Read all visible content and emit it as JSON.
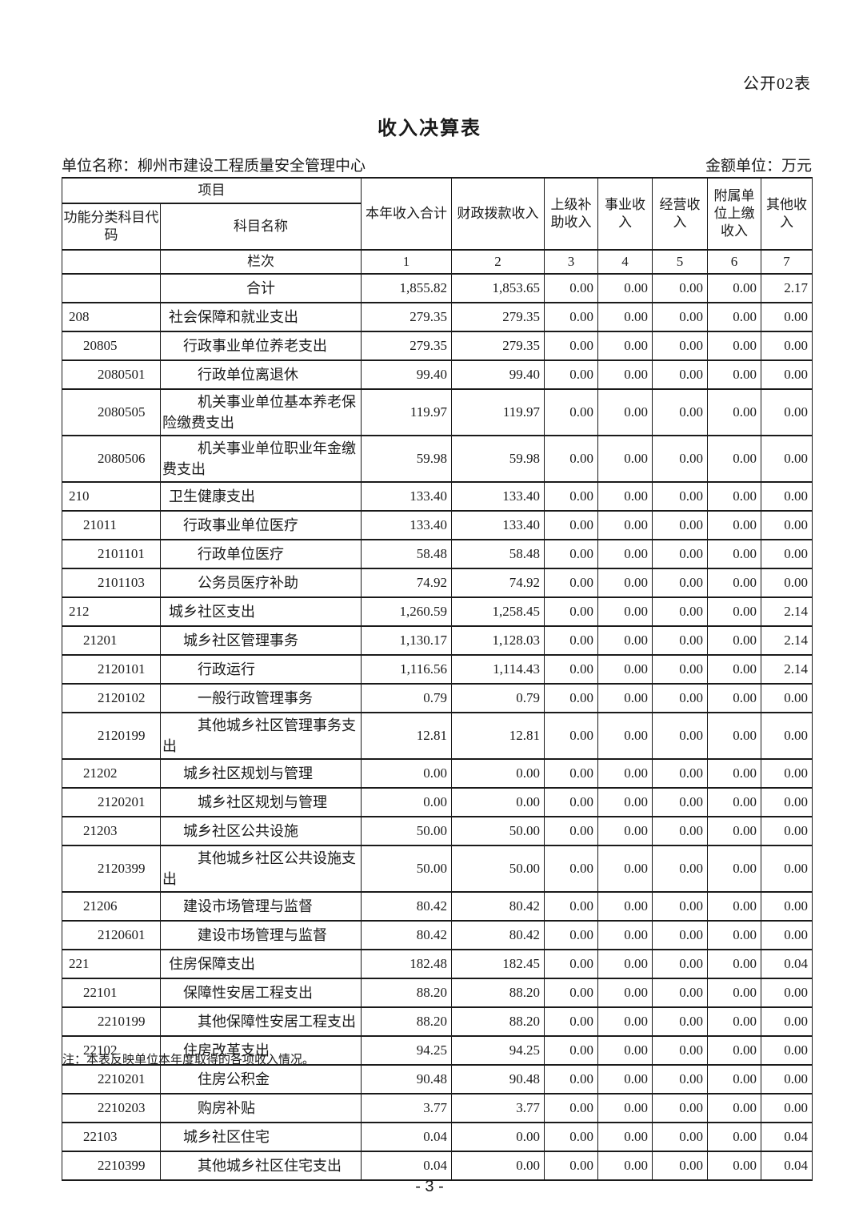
{
  "page": {
    "form_tag": "公开02表",
    "title": "收入决算表",
    "unit_label": "单位名称：柳州市建设工程质量安全管理中心",
    "amount_unit_label": "金额单位：万元",
    "note": "注：本表反映单位本年度取得的各项收入情况。",
    "page_number": "- 3 -"
  },
  "table": {
    "header": {
      "project": "项目",
      "code": "功能分类科目代码",
      "subject_name": "科目名称",
      "columns": [
        "本年收入合计",
        "财政拨款收入",
        "上级补助收入",
        "事业收入",
        "经营收入",
        "附属单位上缴收入",
        "其他收入"
      ],
      "lanci_label": "栏次",
      "column_numbers": [
        "1",
        "2",
        "3",
        "4",
        "5",
        "6",
        "7"
      ]
    },
    "rows": [
      {
        "code": "",
        "name": "合计",
        "level": 0,
        "values": [
          "1,855.82",
          "1,853.65",
          "0.00",
          "0.00",
          "0.00",
          "0.00",
          "2.17"
        ]
      },
      {
        "code": "208",
        "name": "社会保障和就业支出",
        "level": 1,
        "values": [
          "279.35",
          "279.35",
          "0.00",
          "0.00",
          "0.00",
          "0.00",
          "0.00"
        ]
      },
      {
        "code": "20805",
        "name": "行政事业单位养老支出",
        "level": 2,
        "values": [
          "279.35",
          "279.35",
          "0.00",
          "0.00",
          "0.00",
          "0.00",
          "0.00"
        ]
      },
      {
        "code": "2080501",
        "name": "行政单位离退休",
        "level": 3,
        "values": [
          "99.40",
          "99.40",
          "0.00",
          "0.00",
          "0.00",
          "0.00",
          "0.00"
        ]
      },
      {
        "code": "2080505",
        "name": "机关事业单位基本养老保险缴费支出",
        "level": 3,
        "values": [
          "119.97",
          "119.97",
          "0.00",
          "0.00",
          "0.00",
          "0.00",
          "0.00"
        ]
      },
      {
        "code": "2080506",
        "name": "机关事业单位职业年金缴费支出",
        "level": 3,
        "values": [
          "59.98",
          "59.98",
          "0.00",
          "0.00",
          "0.00",
          "0.00",
          "0.00"
        ]
      },
      {
        "code": "210",
        "name": "卫生健康支出",
        "level": 1,
        "values": [
          "133.40",
          "133.40",
          "0.00",
          "0.00",
          "0.00",
          "0.00",
          "0.00"
        ]
      },
      {
        "code": "21011",
        "name": "行政事业单位医疗",
        "level": 2,
        "values": [
          "133.40",
          "133.40",
          "0.00",
          "0.00",
          "0.00",
          "0.00",
          "0.00"
        ]
      },
      {
        "code": "2101101",
        "name": "行政单位医疗",
        "level": 3,
        "values": [
          "58.48",
          "58.48",
          "0.00",
          "0.00",
          "0.00",
          "0.00",
          "0.00"
        ]
      },
      {
        "code": "2101103",
        "name": "公务员医疗补助",
        "level": 3,
        "values": [
          "74.92",
          "74.92",
          "0.00",
          "0.00",
          "0.00",
          "0.00",
          "0.00"
        ]
      },
      {
        "code": "212",
        "name": "城乡社区支出",
        "level": 1,
        "values": [
          "1,260.59",
          "1,258.45",
          "0.00",
          "0.00",
          "0.00",
          "0.00",
          "2.14"
        ]
      },
      {
        "code": "21201",
        "name": "城乡社区管理事务",
        "level": 2,
        "values": [
          "1,130.17",
          "1,128.03",
          "0.00",
          "0.00",
          "0.00",
          "0.00",
          "2.14"
        ]
      },
      {
        "code": "2120101",
        "name": "行政运行",
        "level": 3,
        "values": [
          "1,116.56",
          "1,114.43",
          "0.00",
          "0.00",
          "0.00",
          "0.00",
          "2.14"
        ]
      },
      {
        "code": "2120102",
        "name": "一般行政管理事务",
        "level": 3,
        "values": [
          "0.79",
          "0.79",
          "0.00",
          "0.00",
          "0.00",
          "0.00",
          "0.00"
        ]
      },
      {
        "code": "2120199",
        "name": "其他城乡社区管理事务支出",
        "level": 3,
        "values": [
          "12.81",
          "12.81",
          "0.00",
          "0.00",
          "0.00",
          "0.00",
          "0.00"
        ]
      },
      {
        "code": "21202",
        "name": "城乡社区规划与管理",
        "level": 2,
        "values": [
          "0.00",
          "0.00",
          "0.00",
          "0.00",
          "0.00",
          "0.00",
          "0.00"
        ]
      },
      {
        "code": "2120201",
        "name": "城乡社区规划与管理",
        "level": 3,
        "values": [
          "0.00",
          "0.00",
          "0.00",
          "0.00",
          "0.00",
          "0.00",
          "0.00"
        ]
      },
      {
        "code": "21203",
        "name": "城乡社区公共设施",
        "level": 2,
        "values": [
          "50.00",
          "50.00",
          "0.00",
          "0.00",
          "0.00",
          "0.00",
          "0.00"
        ]
      },
      {
        "code": "2120399",
        "name": "其他城乡社区公共设施支出",
        "level": 3,
        "values": [
          "50.00",
          "50.00",
          "0.00",
          "0.00",
          "0.00",
          "0.00",
          "0.00"
        ]
      },
      {
        "code": "21206",
        "name": "建设市场管理与监督",
        "level": 2,
        "values": [
          "80.42",
          "80.42",
          "0.00",
          "0.00",
          "0.00",
          "0.00",
          "0.00"
        ]
      },
      {
        "code": "2120601",
        "name": "建设市场管理与监督",
        "level": 3,
        "values": [
          "80.42",
          "80.42",
          "0.00",
          "0.00",
          "0.00",
          "0.00",
          "0.00"
        ]
      },
      {
        "code": "221",
        "name": "住房保障支出",
        "level": 1,
        "values": [
          "182.48",
          "182.45",
          "0.00",
          "0.00",
          "0.00",
          "0.00",
          "0.04"
        ]
      },
      {
        "code": "22101",
        "name": "保障性安居工程支出",
        "level": 2,
        "values": [
          "88.20",
          "88.20",
          "0.00",
          "0.00",
          "0.00",
          "0.00",
          "0.00"
        ]
      },
      {
        "code": "2210199",
        "name": "其他保障性安居工程支出",
        "level": 3,
        "values": [
          "88.20",
          "88.20",
          "0.00",
          "0.00",
          "0.00",
          "0.00",
          "0.00"
        ]
      },
      {
        "code": "22102",
        "name": "住房改革支出",
        "level": 2,
        "values": [
          "94.25",
          "94.25",
          "0.00",
          "0.00",
          "0.00",
          "0.00",
          "0.00"
        ]
      },
      {
        "code": "2210201",
        "name": "住房公积金",
        "level": 3,
        "values": [
          "90.48",
          "90.48",
          "0.00",
          "0.00",
          "0.00",
          "0.00",
          "0.00"
        ]
      },
      {
        "code": "2210203",
        "name": "购房补贴",
        "level": 3,
        "values": [
          "3.77",
          "3.77",
          "0.00",
          "0.00",
          "0.00",
          "0.00",
          "0.00"
        ]
      },
      {
        "code": "22103",
        "name": "城乡社区住宅",
        "level": 2,
        "values": [
          "0.04",
          "0.00",
          "0.00",
          "0.00",
          "0.00",
          "0.00",
          "0.04"
        ]
      },
      {
        "code": "2210399",
        "name": "其他城乡社区住宅支出",
        "level": 3,
        "values": [
          "0.04",
          "0.00",
          "0.00",
          "0.00",
          "0.00",
          "0.00",
          "0.04"
        ]
      }
    ]
  }
}
